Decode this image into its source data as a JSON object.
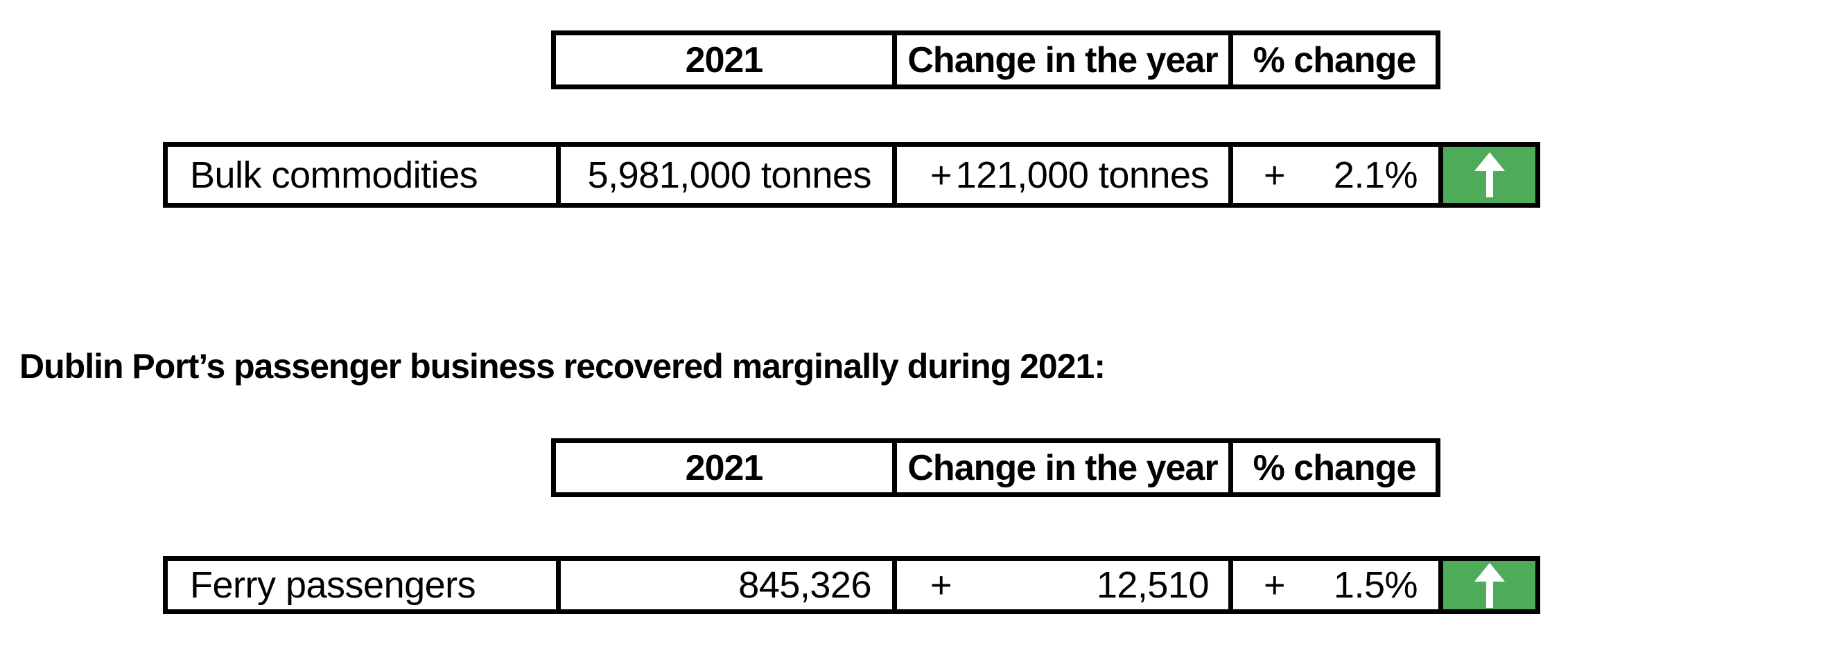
{
  "colors": {
    "background": "#ffffff",
    "border": "#000000",
    "text": "#000000",
    "indicator_green": "#4DAB59",
    "arrow_white": "#ffffff"
  },
  "heading": {
    "text": "Dublin Port’s passenger business recovered marginally during 2021:"
  },
  "tables": [
    {
      "header": {
        "year": "2021",
        "change": "Change in the year",
        "pct": "% change"
      },
      "row": {
        "label": "Bulk commodities",
        "value": "5,981,000 tonnes",
        "change_sign": "+",
        "change_value": "121,000 tonnes",
        "pct_sign": "+",
        "pct_value": "2.1%",
        "indicator": "up"
      }
    },
    {
      "header": {
        "year": "2021",
        "change": "Change in the year",
        "pct": "% change"
      },
      "row": {
        "label": "Ferry passengers",
        "value": "845,326",
        "change_sign": "+",
        "change_value": "12,510",
        "pct_sign": "+",
        "pct_value": "1.5%",
        "indicator": "up"
      }
    }
  ]
}
